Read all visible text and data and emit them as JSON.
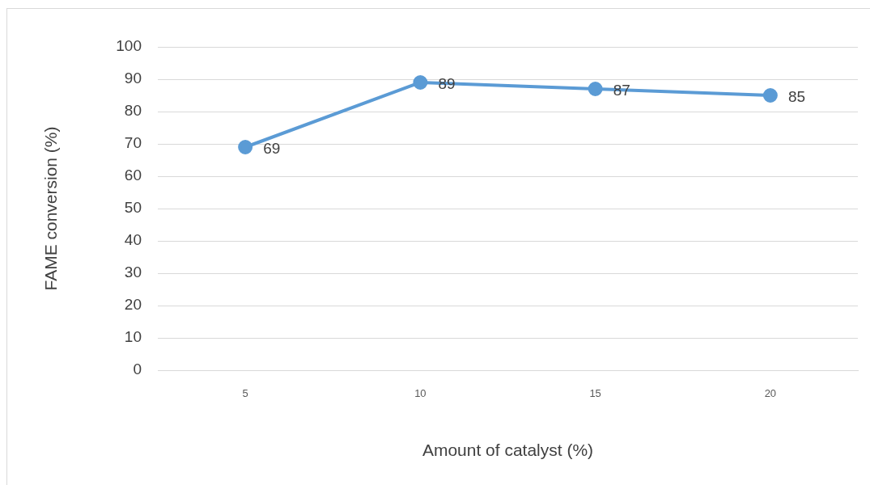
{
  "chart_data": {
    "type": "line",
    "xlabel": "Amount of catalyst (%)",
    "ylabel": "FAME conversion (%)",
    "categories": [
      "5",
      "10",
      "15",
      "20"
    ],
    "series": [
      {
        "color": "#5b9bd5",
        "values": [
          69,
          89,
          87,
          85
        ]
      }
    ],
    "ylim": [
      0,
      100
    ],
    "yticks": [
      0,
      10,
      20,
      30,
      40,
      50,
      60,
      70,
      80,
      90,
      100
    ],
    "grid": "y",
    "marker": "circle",
    "data_labels": true,
    "legend": false
  }
}
